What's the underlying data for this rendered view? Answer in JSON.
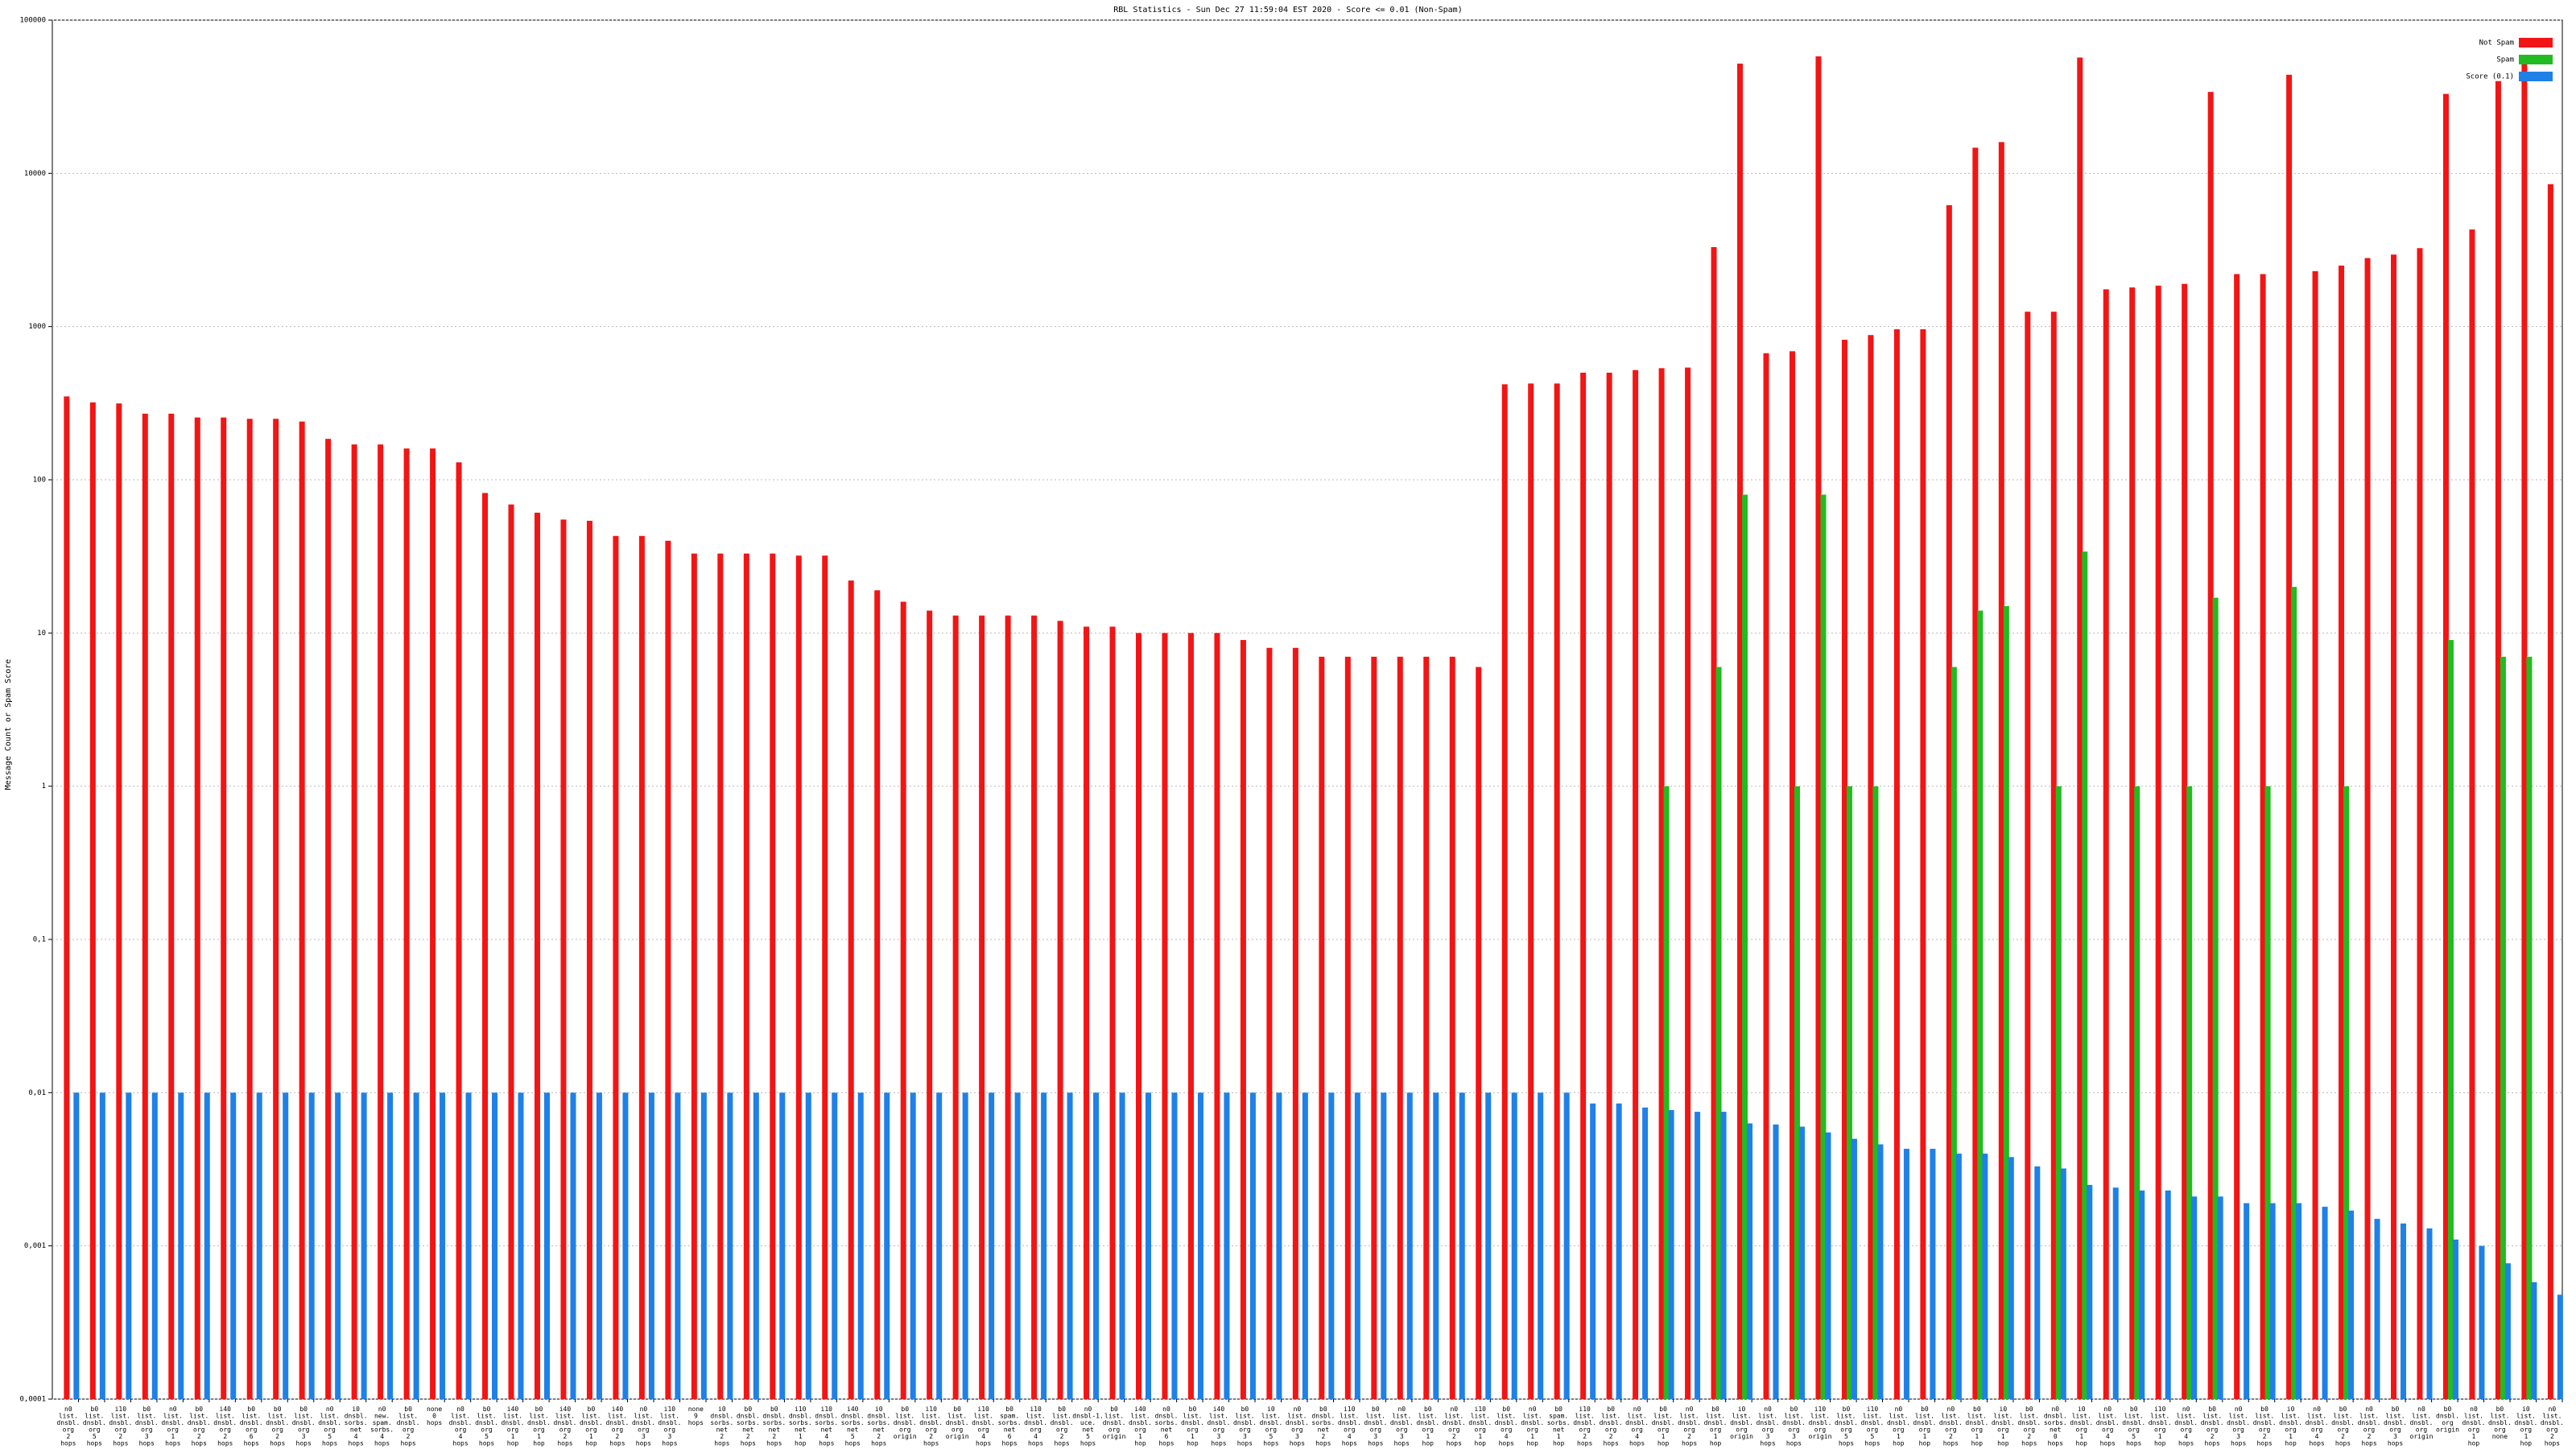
{
  "chart_data": {
    "type": "bar",
    "title": "RBL Statistics - Sun Dec 27 11:59:04 EST 2020 - Score <= 0.01 (Non-Spam)",
    "y_label": "Message Count or Spam Score",
    "log_scale": true,
    "grid": true,
    "legend": "top-right",
    "ylim": [
      0.0001,
      100000
    ],
    "yticks": [
      {
        "value": 0.0001,
        "label": "0,0001"
      },
      {
        "value": 0.001,
        "label": "0,001"
      },
      {
        "value": 0.01,
        "label": "0,01"
      },
      {
        "value": 0.1,
        "label": "0,1"
      },
      1,
      10,
      100,
      1000,
      10000,
      100000
    ],
    "categories": [
      "n0 list. dnsbl. org 2 hops",
      "b0 list. dnsbl. org 5 hops",
      "i10 list. dnsbl. org 2 hops",
      "b0 list. dnsbl. org 3 hops",
      "n0 list. dnsbl. org 1 hops",
      "b0 list. dnsbl. org 2 hops",
      "i40 list. dnsbl. org 2 hops",
      "b0 list. dnsbl. org 6 hops",
      "b0 list. dnsbl. org 2 hops",
      "b0 list. dnsbl. org 3 hops",
      "n0 list. dnsbl. org 5 hops",
      "i0 dnsbl. sorbs. net 4 hops",
      "n0 new. spam. sorbs. 4 hops",
      "b0 list. dnsbl. org 2 hops",
      "none 0 hops",
      "n0 list. dnsbl. org 4 hops",
      "b0 list. dnsbl. org 5 hops",
      "i40 list. dnsbl. org 1 hop",
      "b0 list. dnsbl. org 1 hop",
      "i40 list. dnsbl. org 2 hops",
      "b0 list. dnsbl. org 1 hop",
      "i40 list. dnsbl. org 2 hops",
      "n0 list. dnsbl. org 3 hops",
      "i10 list. dnsbl. org 3 hops",
      "none 9 hops",
      "i0 dnsbl. sorbs. net 2 hops",
      "b0 dnsbl. sorbs. net 2 hops",
      "b0 dnsbl. sorbs. net 2 hops",
      "i10 dnsbl. sorbs. net 1 hop",
      "i10 dnsbl. sorbs. net 4 hops",
      "i40 dnsbl. sorbs. net 5 hops",
      "i0 dnsbl. sorbs. net 2 hops",
      "b0 list. dnsbl. org origin",
      "i10 list. dnsbl. org 2 hops",
      "b0 list. dnsbl. org origin",
      "i10 list. dnsbl. org 4 hops",
      "b0 spam. sorbs. net 6 hops",
      "i10 list. dnsbl. org 4 hops",
      "b0 list. dnsbl. org 2 hops",
      "n0 dnsbl-1. uce. net 5 hops",
      "b0 list. dnsbl. org origin",
      "i40 list. dnsbl. org 1 hop",
      "n0 dnsbl. sorbs. net 6 hops",
      "b0 list. dnsbl. org 1 hop",
      "i40 list. dnsbl. org 3 hops",
      "b0 list. dnsbl. org 3 hops",
      "i0 list. dnsbl. org 5 hops",
      "n0 list. dnsbl. org 3 hops",
      "b0 dnsbl. sorbs. net 2 hops",
      "i10 list. dnsbl. org 4 hops",
      "b0 list. dnsbl. org 3 hops",
      "n0 list. dnsbl. org 3 hops",
      "b0 list. dnsbl. org 1 hop",
      "n0 list. dnsbl. org 2 hops",
      "i10 list. dnsbl. org 1 hop",
      "b0 list. dnsbl. org 4 hops",
      "n0 list. dnsbl. org 1 hop",
      "b0 spam. sorbs. net 1 hop",
      "i10 list. dnsbl. org 2 hops",
      "b0 list. dnsbl. org 2 hops",
      "n0 list. dnsbl. org 4 hops",
      "b0 list. dnsbl. org 1 hop",
      "n0 list. dnsbl. org 2 hops",
      "b0 list. dnsbl. org 1 hop",
      "i0 list. dnsbl. org origin",
      "n0 list. dnsbl. org 3 hops",
      "b0 list. dnsbl. org 3 hops",
      "i10 list. dnsbl. org origin",
      "b0 list. dnsbl. org 5 hops",
      "i10 list. dnsbl. org 5 hops",
      "n0 list. dnsbl. org 1 hop",
      "b0 list. dnsbl. org 1 hop",
      "n0 list. dnsbl. org 2 hops",
      "b0 list. dnsbl. org 1 hop",
      "i0 list. dnsbl. org 1 hop",
      "b0 list. dnsbl. org 2 hops",
      "n0 dnsbl. sorbs. net 0 hops",
      "i0 list. dnsbl. org 1 hop",
      "n0 list. dnsbl. org 4 hops",
      "b0 list. dnsbl. org 5 hops",
      "i10 list. dnsbl. org 1 hop",
      "n0 list. dnsbl. org 4 hops",
      "b0 list. dnsbl. org 2 hops",
      "n0 list. dnsbl. org 3 hops",
      "b0 list. dnsbl. org 2 hops",
      "i0 list. dnsbl. org 1 hop",
      "n0 list. dnsbl. org 4 hops",
      "b0 list. dnsbl. org 2 hops",
      "n0 list. dnsbl. org 2 hops",
      "b0 list. dnsbl. org 3 hops",
      "n0 list. dnsbl. org origin",
      "b0 dnsbl. org origin",
      "n0 list. dnsbl. org 1 hop",
      "b0 list. dnsbl. org none",
      "i0 list. dnsbl. org 1 hop",
      "n0 list. dnsbl. org 2 hops"
    ],
    "series": [
      {
        "name": "Not Spam",
        "color": "#f21515",
        "values": [
          350,
          320,
          315,
          270,
          270,
          255,
          255,
          250,
          250,
          240,
          185,
          170,
          170,
          160,
          160,
          130,
          82,
          69,
          61,
          55,
          54,
          43,
          43,
          40,
          33,
          33,
          33,
          33,
          32,
          32,
          22,
          19,
          16,
          14,
          13,
          13,
          13,
          13,
          12,
          11,
          11,
          10,
          10,
          10,
          10,
          9,
          8,
          8,
          7,
          7,
          7,
          7,
          7,
          7,
          6,
          420,
          425,
          425,
          500,
          500,
          520,
          535,
          540,
          3300,
          52000,
          670,
          690,
          58000,
          820,
          880,
          960,
          960,
          6200,
          14700,
          16000,
          1250,
          1250,
          57000,
          1750,
          1800,
          1850,
          1900,
          34000,
          2200,
          2200,
          44000,
          2300,
          2500,
          2800,
          2950,
          3250,
          33000,
          4300,
          40000,
          52000,
          8500
        ]
      },
      {
        "name": "Spam",
        "color": "#22bb22",
        "values": [
          null,
          null,
          null,
          null,
          null,
          null,
          null,
          null,
          null,
          null,
          null,
          null,
          null,
          null,
          null,
          null,
          null,
          null,
          null,
          null,
          null,
          null,
          null,
          null,
          null,
          null,
          null,
          null,
          null,
          null,
          null,
          null,
          null,
          null,
          null,
          null,
          null,
          null,
          null,
          null,
          null,
          null,
          null,
          null,
          null,
          null,
          null,
          null,
          null,
          null,
          null,
          null,
          null,
          null,
          null,
          null,
          null,
          null,
          null,
          null,
          null,
          1,
          null,
          6,
          80,
          null,
          1,
          80,
          1,
          1,
          null,
          null,
          6,
          14,
          15,
          null,
          1,
          34,
          null,
          1,
          null,
          1,
          17,
          null,
          1,
          20,
          null,
          1,
          null,
          null,
          null,
          9,
          null,
          7,
          7,
          null
        ]
      },
      {
        "name": "Score (0.1)",
        "color": "#1f80e8",
        "values": [
          0.01,
          0.01,
          0.01,
          0.01,
          0.01,
          0.01,
          0.01,
          0.01,
          0.01,
          0.01,
          0.01,
          0.01,
          0.01,
          0.01,
          0.01,
          0.01,
          0.01,
          0.01,
          0.01,
          0.01,
          0.01,
          0.01,
          0.01,
          0.01,
          0.01,
          0.01,
          0.01,
          0.01,
          0.01,
          0.01,
          0.01,
          0.01,
          0.01,
          0.01,
          0.01,
          0.01,
          0.01,
          0.01,
          0.01,
          0.01,
          0.01,
          0.01,
          0.01,
          0.01,
          0.01,
          0.01,
          0.01,
          0.01,
          0.01,
          0.01,
          0.01,
          0.01,
          0.01,
          0.01,
          0.01,
          0.01,
          0.01,
          0.01,
          0.0085,
          0.0085,
          0.008,
          0.0077,
          0.0075,
          0.0075,
          0.0063,
          0.0062,
          0.006,
          0.0055,
          0.005,
          0.0046,
          0.0043,
          0.0043,
          0.004,
          0.004,
          0.0038,
          0.0033,
          0.0032,
          0.0025,
          0.0024,
          0.0023,
          0.0023,
          0.0021,
          0.0021,
          0.0019,
          0.0019,
          0.0019,
          0.0018,
          0.0017,
          0.0015,
          0.0014,
          0.0013,
          0.0011,
          0.001,
          0.00077,
          0.00058,
          0.00048
        ]
      }
    ]
  }
}
